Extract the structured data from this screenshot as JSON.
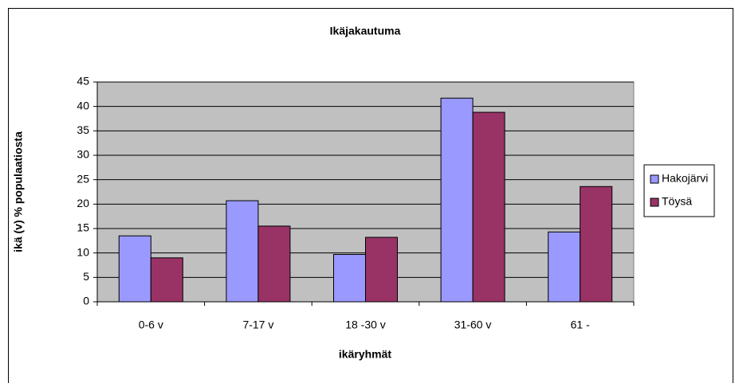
{
  "chart_data": {
    "type": "bar",
    "title": "Ikäjakautuma",
    "x_label": "ikäryhmät",
    "y_label": "ikä (v)  % populaatiosta",
    "categories": [
      "0-6 v",
      "7-17 v",
      "18 -30 v",
      "31-60 v",
      "61 -"
    ],
    "series": [
      {
        "name": "Hakojärvi",
        "color": "#9999ff",
        "values": [
          13.5,
          20.7,
          9.7,
          41.7,
          14.3
        ]
      },
      {
        "name": "Töysä",
        "color": "#993366",
        "values": [
          9.0,
          15.5,
          13.2,
          38.8,
          23.6
        ]
      }
    ],
    "ylim": [
      0,
      45
    ],
    "yticks": [
      0,
      5,
      10,
      15,
      20,
      25,
      30,
      35,
      40,
      45
    ],
    "grid": true,
    "legend": "right"
  }
}
